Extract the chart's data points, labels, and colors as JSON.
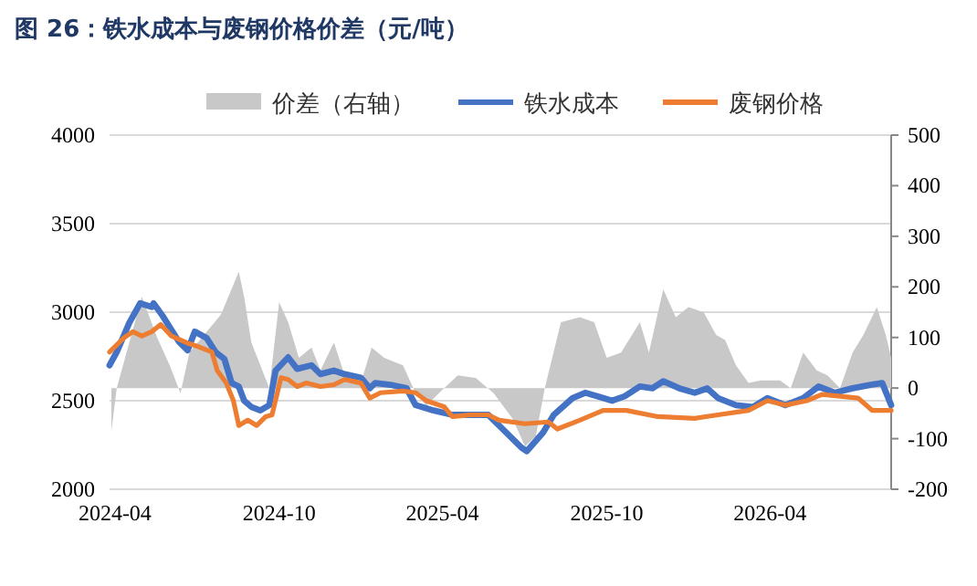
{
  "chart_data": {
    "type": "line",
    "title": "图 26：铁水成本与废钢价格价差（元/吨）",
    "xlim": [
      "2024-03-26",
      "2026-08-14"
    ],
    "xticks": [
      "2024-04",
      "2024-10",
      "2025-04",
      "2025-10",
      "2026-04"
    ],
    "ylim": [
      2000,
      4000
    ],
    "yticks": [
      2000,
      2500,
      3000,
      3500,
      4000
    ],
    "y2lim": [
      -200,
      500
    ],
    "y2ticks": [
      -200,
      -100,
      0,
      100,
      200,
      300,
      400,
      500
    ],
    "grid": "y",
    "legend": "top",
    "line_style": "solid",
    "marker": "none",
    "series": [
      {
        "name": "价差（右轴）",
        "type": "area",
        "axis": "y2",
        "color": "#c8c8c8",
        "x": [
          "2024-03-28",
          "2024-04-03",
          "2024-05-01",
          "2024-05-18",
          "2024-06-01",
          "2024-06-13",
          "2024-06-23",
          "2024-07-28",
          "2024-08-17",
          "2024-08-23",
          "2024-08-31",
          "2024-09-20",
          "2024-10-01",
          "2024-10-11",
          "2024-10-23",
          "2024-11-06",
          "2024-11-16",
          "2024-12-01",
          "2024-12-13",
          "2024-12-31",
          "2025-01-12",
          "2025-01-26",
          "2025-02-16",
          "2025-03-02",
          "2025-03-14",
          "2025-03-28",
          "2025-04-18",
          "2025-05-08",
          "2025-05-28",
          "2025-06-18",
          "2025-07-02",
          "2025-07-14",
          "2025-07-24",
          "2025-08-11",
          "2025-09-01",
          "2025-09-17",
          "2025-10-01",
          "2025-10-17",
          "2025-11-07",
          "2025-11-17",
          "2025-12-03",
          "2025-12-17",
          "2025-12-31",
          "2026-01-17",
          "2026-01-31",
          "2026-02-10",
          "2026-02-22",
          "2026-03-08",
          "2026-03-22",
          "2026-04-12",
          "2026-04-24",
          "2026-05-08",
          "2026-05-23",
          "2026-06-04",
          "2026-06-18",
          "2026-07-02",
          "2026-07-14",
          "2026-07-29",
          "2026-08-08",
          "2026-08-14"
        ],
        "values": [
          -85,
          0,
          180,
          100,
          45,
          -10,
          70,
          145,
          230,
          180,
          90,
          0,
          170,
          130,
          60,
          80,
          35,
          90,
          25,
          10,
          80,
          60,
          45,
          -10,
          -35,
          -10,
          25,
          20,
          -10,
          -60,
          -115,
          -95,
          0,
          130,
          140,
          130,
          60,
          70,
          130,
          70,
          195,
          140,
          160,
          150,
          105,
          95,
          45,
          10,
          15,
          15,
          0,
          70,
          35,
          25,
          0,
          70,
          105,
          160,
          105,
          60
        ]
      },
      {
        "name": "铁水成本",
        "color": "#4472c4",
        "x": [
          "2024-03-26",
          "2024-04-03",
          "2024-04-17",
          "2024-04-29",
          "2024-05-12",
          "2024-05-14",
          "2024-05-24",
          "2024-06-11",
          "2024-06-21",
          "2024-06-29",
          "2024-07-12",
          "2024-07-22",
          "2024-08-01",
          "2024-08-09",
          "2024-08-17",
          "2024-08-23",
          "2024-08-31",
          "2024-09-10",
          "2024-09-20",
          "2024-09-27",
          "2024-10-11",
          "2024-10-21",
          "2024-11-06",
          "2024-11-16",
          "2024-12-01",
          "2024-12-13",
          "2024-12-31",
          "2025-01-10",
          "2025-01-16",
          "2025-02-02",
          "2025-02-20",
          "2025-03-02",
          "2025-03-22",
          "2025-04-12",
          "2025-05-08",
          "2025-05-22",
          "2025-06-03",
          "2025-06-28",
          "2025-07-04",
          "2025-07-22",
          "2025-08-03",
          "2025-08-24",
          "2025-09-07",
          "2025-09-21",
          "2025-10-07",
          "2025-10-21",
          "2025-11-07",
          "2025-11-21",
          "2025-12-03",
          "2025-12-21",
          "2026-01-07",
          "2026-01-21",
          "2026-02-02",
          "2026-02-22",
          "2026-03-13",
          "2026-03-29",
          "2026-04-18",
          "2026-05-08",
          "2026-05-25",
          "2026-06-12",
          "2026-07-02",
          "2026-07-22",
          "2026-08-04",
          "2026-08-10",
          "2026-08-14"
        ],
        "values": [
          2700,
          2775,
          2940,
          3050,
          3030,
          3050,
          2980,
          2835,
          2785,
          2890,
          2855,
          2775,
          2735,
          2600,
          2580,
          2500,
          2465,
          2445,
          2475,
          2670,
          2745,
          2680,
          2700,
          2650,
          2670,
          2650,
          2630,
          2570,
          2600,
          2590,
          2570,
          2475,
          2445,
          2420,
          2420,
          2420,
          2360,
          2235,
          2215,
          2320,
          2420,
          2515,
          2545,
          2525,
          2500,
          2525,
          2580,
          2570,
          2610,
          2570,
          2545,
          2570,
          2515,
          2475,
          2465,
          2515,
          2475,
          2515,
          2580,
          2545,
          2570,
          2590,
          2600,
          2525,
          2475
        ]
      },
      {
        "name": "废钢价格",
        "color": "#ed7d31",
        "x": [
          "2024-03-26",
          "2024-04-11",
          "2024-04-21",
          "2024-05-01",
          "2024-05-12",
          "2024-05-22",
          "2024-06-03",
          "2024-06-21",
          "2024-07-03",
          "2024-07-18",
          "2024-07-24",
          "2024-08-03",
          "2024-08-11",
          "2024-08-17",
          "2024-08-27",
          "2024-09-06",
          "2024-09-16",
          "2024-09-23",
          "2024-10-03",
          "2024-10-11",
          "2024-10-21",
          "2024-10-31",
          "2024-11-16",
          "2024-12-01",
          "2024-12-13",
          "2024-12-31",
          "2025-01-10",
          "2025-01-22",
          "2025-02-16",
          "2025-03-02",
          "2025-03-14",
          "2025-04-03",
          "2025-04-12",
          "2025-05-02",
          "2025-05-22",
          "2025-06-03",
          "2025-07-02",
          "2025-07-28",
          "2025-08-07",
          "2025-09-01",
          "2025-09-27",
          "2025-10-23",
          "2025-11-27",
          "2026-01-07",
          "2026-02-02",
          "2026-03-08",
          "2026-03-29",
          "2026-04-18",
          "2026-05-12",
          "2026-05-29",
          "2026-06-18",
          "2026-07-08",
          "2026-07-24",
          "2026-08-14"
        ],
        "values": [
          2775,
          2855,
          2890,
          2865,
          2890,
          2930,
          2865,
          2825,
          2805,
          2775,
          2670,
          2600,
          2500,
          2360,
          2390,
          2360,
          2410,
          2420,
          2630,
          2620,
          2580,
          2600,
          2580,
          2590,
          2620,
          2600,
          2515,
          2545,
          2555,
          2545,
          2500,
          2465,
          2410,
          2420,
          2420,
          2390,
          2370,
          2380,
          2340,
          2390,
          2445,
          2445,
          2410,
          2400,
          2420,
          2445,
          2500,
          2475,
          2500,
          2535,
          2525,
          2515,
          2445,
          2445
        ]
      }
    ]
  }
}
